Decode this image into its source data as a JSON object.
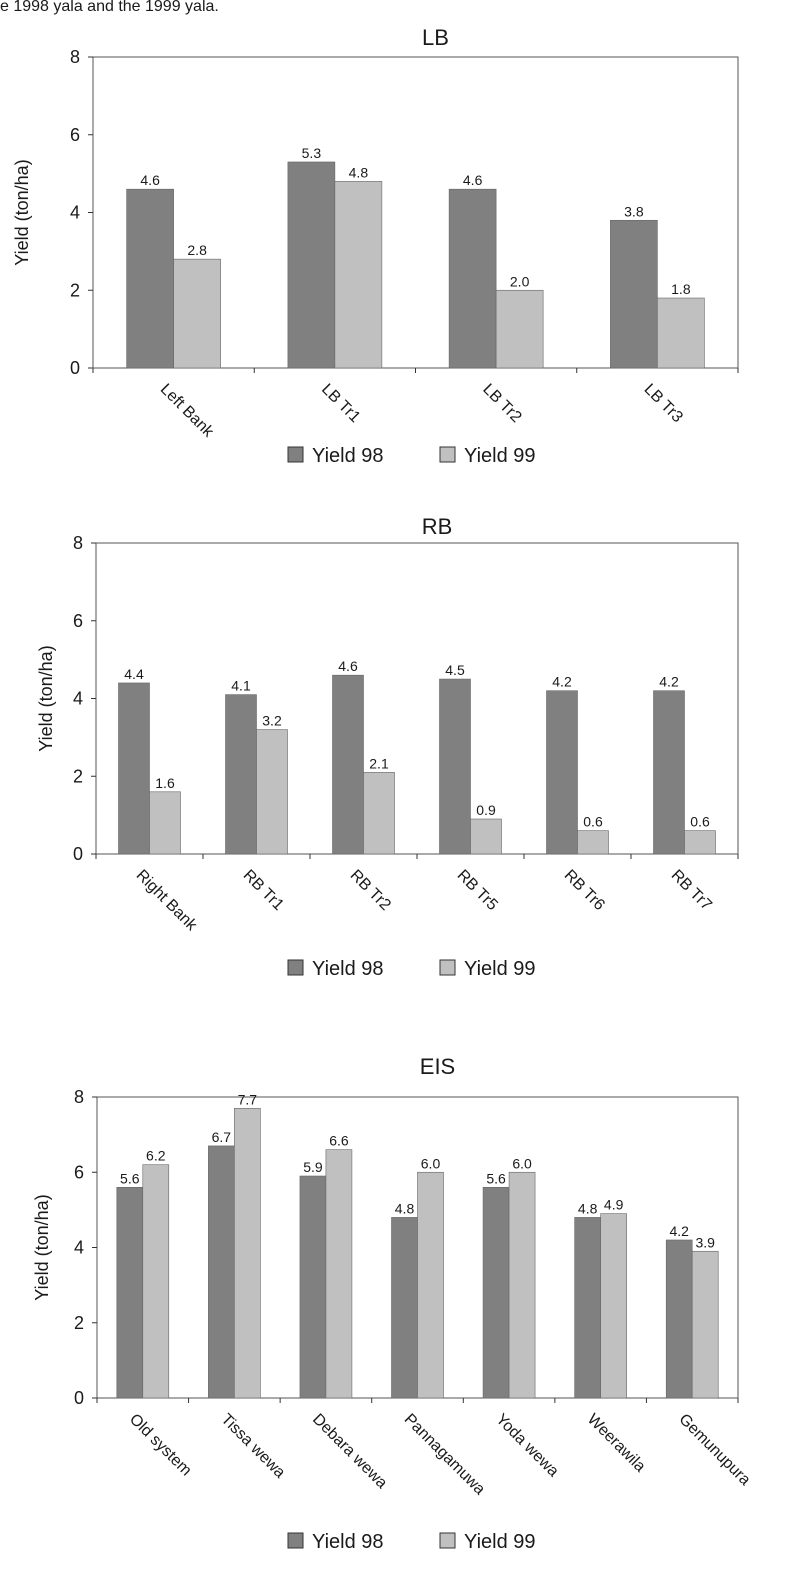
{
  "caption": "e 1998 yala and the 1999 yala.",
  "colors": {
    "yield98": "#808080",
    "yield99": "#c0c0c0",
    "axis": "#333333"
  },
  "chart_data": [
    {
      "type": "bar",
      "title": "LB",
      "ylabel": "Yield (ton/ha)",
      "xlabel": "",
      "ylim": [
        0,
        8
      ],
      "yticks": [
        "0",
        "2",
        "4",
        "6",
        "8"
      ],
      "grid": false,
      "legend_position": "bottom",
      "categories": [
        "Left Bank",
        "LB Tr1",
        "LB Tr2",
        "LB Tr3"
      ],
      "series": [
        {
          "name": "Yield 98",
          "values": [
            4.6,
            5.3,
            4.6,
            3.8
          ],
          "labels": [
            "4.6",
            "5.3",
            "4.6",
            "3.8"
          ]
        },
        {
          "name": "Yield 99",
          "values": [
            2.8,
            4.8,
            2.0,
            1.8
          ],
          "labels": [
            "2.8",
            "4.8",
            "2.0",
            "1.8"
          ]
        }
      ]
    },
    {
      "type": "bar",
      "title": "RB",
      "ylabel": "Yield (ton/ha)",
      "xlabel": "",
      "ylim": [
        0,
        8
      ],
      "yticks": [
        "0",
        "2",
        "4",
        "6",
        "8"
      ],
      "grid": false,
      "legend_position": "bottom",
      "categories": [
        "Right Bank",
        "RB Tr1",
        "RB Tr2",
        "RB Tr5",
        "RB Tr6",
        "RB Tr7"
      ],
      "series": [
        {
          "name": "Yield 98",
          "values": [
            4.4,
            4.1,
            4.6,
            4.5,
            4.2,
            4.2
          ],
          "labels": [
            "4.4",
            "4.1",
            "4.6",
            "4.5",
            "4.2",
            "4.2"
          ]
        },
        {
          "name": "Yield 99",
          "values": [
            1.6,
            3.2,
            2.1,
            0.9,
            0.6,
            0.6
          ],
          "labels": [
            "1.6",
            "3.2",
            "2.1",
            "0.9",
            "0.6",
            "0.6"
          ]
        }
      ]
    },
    {
      "type": "bar",
      "title": "EIS",
      "ylabel": "Yield (ton/ha)",
      "xlabel": "",
      "ylim": [
        0,
        8
      ],
      "yticks": [
        "0",
        "2",
        "4",
        "6",
        "8"
      ],
      "grid": false,
      "legend_position": "bottom",
      "categories": [
        "Old system",
        "Tissa wewa",
        "Debara wewa",
        "Pannagamuwa",
        "Yoda wewa",
        "Weerawila",
        "Gemunupura"
      ],
      "series": [
        {
          "name": "Yield 98",
          "values": [
            5.6,
            6.7,
            5.9,
            4.8,
            5.6,
            4.8,
            4.2
          ],
          "labels": [
            "5.6",
            "6.7",
            "5.9",
            "4.8",
            "5.6",
            "4.8",
            "4.2"
          ]
        },
        {
          "name": "Yield 99",
          "values": [
            6.2,
            7.7,
            6.6,
            6.0,
            6.0,
            4.9,
            3.9
          ],
          "labels": [
            "6.2",
            "7.7",
            "6.6",
            "6.0",
            "6.0",
            "4.9",
            "3.9"
          ]
        }
      ]
    }
  ]
}
